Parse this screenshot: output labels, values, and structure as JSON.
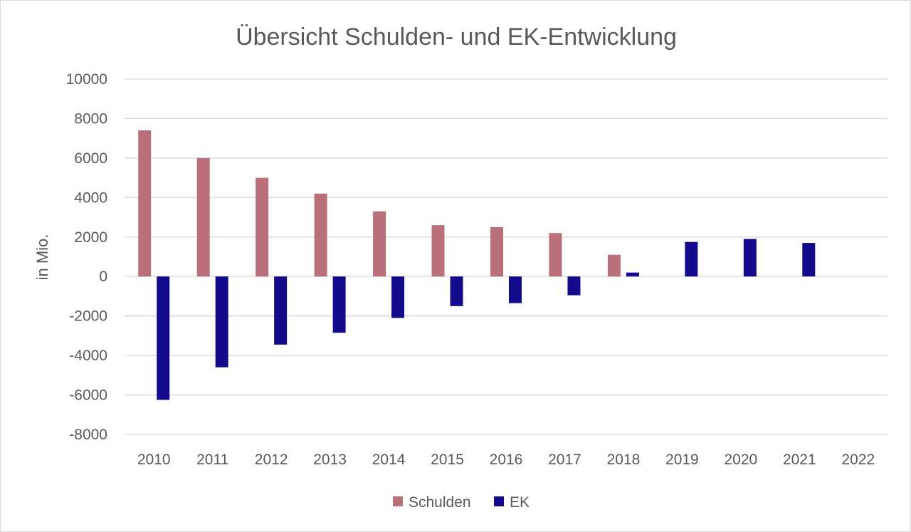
{
  "chart_data": {
    "type": "bar",
    "title": "Übersicht Schulden- und EK-Entwicklung",
    "xlabel": "",
    "ylabel": "in Mio.",
    "ylim": [
      -8000,
      10000
    ],
    "yticks": [
      "10000",
      "8000",
      "6000",
      "4000",
      "2000",
      "0",
      "-2000",
      "-4000",
      "-6000",
      "-8000"
    ],
    "categories": [
      "2010",
      "2011",
      "2012",
      "2013",
      "2014",
      "2015",
      "2016",
      "2017",
      "2018",
      "2019",
      "2020",
      "2021",
      "2022"
    ],
    "series": [
      {
        "name": "Schulden",
        "color": "#b9707a",
        "values": [
          7400,
          6000,
          5000,
          4200,
          3300,
          2600,
          2500,
          2200,
          1100,
          null,
          null,
          null,
          null
        ]
      },
      {
        "name": "EK",
        "color": "#140a8c",
        "values": [
          -6250,
          -4600,
          -3450,
          -2850,
          -2100,
          -1500,
          -1350,
          -950,
          200,
          1750,
          1900,
          1700,
          null
        ]
      }
    ],
    "grid": true,
    "legend": "bottom"
  }
}
